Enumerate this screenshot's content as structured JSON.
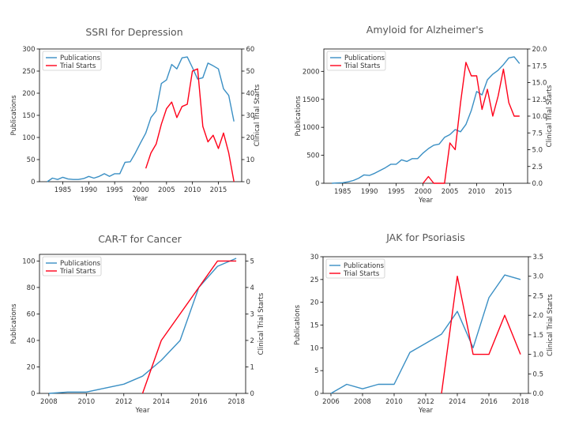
{
  "chart_data": [
    {
      "type": "line",
      "title": "SSRI for Depression",
      "xlabel": "Year",
      "ylabel": "Publications",
      "ylabel_right": "Clinical Trial Starts",
      "xlim": [
        1980.5,
        2019.5
      ],
      "xticks": [
        1985,
        1990,
        1995,
        2000,
        2005,
        2010,
        2015
      ],
      "ylim": [
        0,
        300
      ],
      "yticks": [
        0,
        50,
        100,
        150,
        200,
        250,
        300
      ],
      "ylim_right": [
        0,
        60
      ],
      "yticks_right": [
        0,
        10,
        20,
        30,
        40,
        50,
        60
      ],
      "legend": "top-left",
      "colors": {
        "publications": "#3a8fc4",
        "trials": "#ff0019"
      },
      "series": [
        {
          "name": "Publications",
          "axis": "left",
          "x": [
            1982,
            1983,
            1984,
            1985,
            1986,
            1987,
            1988,
            1989,
            1990,
            1991,
            1992,
            1993,
            1994,
            1995,
            1996,
            1997,
            1998,
            1999,
            2000,
            2001,
            2002,
            2003,
            2004,
            2005,
            2006,
            2007,
            2008,
            2009,
            2010,
            2011,
            2012,
            2013,
            2014,
            2015,
            2016,
            2017,
            2018
          ],
          "y": [
            0,
            8,
            5,
            10,
            6,
            5,
            5,
            7,
            12,
            8,
            12,
            18,
            12,
            18,
            18,
            44,
            45,
            65,
            88,
            110,
            145,
            160,
            222,
            230,
            265,
            255,
            280,
            282,
            258,
            232,
            235,
            268,
            262,
            255,
            210,
            195,
            136
          ]
        },
        {
          "name": "Trial Starts",
          "axis": "right",
          "x": [
            2001,
            2002,
            2003,
            2004,
            2005,
            2006,
            2007,
            2008,
            2009,
            2010,
            2011,
            2012,
            2013,
            2014,
            2015,
            2016,
            2017,
            2018
          ],
          "y": [
            6,
            13,
            17,
            26,
            33,
            36,
            29,
            34,
            35,
            50,
            51,
            25,
            18,
            21,
            15,
            22,
            13,
            0
          ]
        }
      ]
    },
    {
      "type": "line",
      "title": "Amyloid for Alzheimer's",
      "xlabel": "Year",
      "ylabel": "Publications",
      "ylabel_right": "Clinical Trial Starts",
      "xlim": [
        1981.5,
        2019.5
      ],
      "xticks": [
        1985,
        1990,
        1995,
        2000,
        2005,
        2010,
        2015
      ],
      "ylim": [
        0,
        2400
      ],
      "yticks": [
        0,
        500,
        1000,
        1500,
        2000
      ],
      "ylim_right": [
        0,
        20
      ],
      "yticks_right": [
        0.0,
        2.5,
        5.0,
        7.5,
        10.0,
        12.5,
        15.0,
        17.5,
        20.0
      ],
      "legend": "top-left",
      "colors": {
        "publications": "#3a8fc4",
        "trials": "#ff0019"
      },
      "series": [
        {
          "name": "Publications",
          "axis": "left",
          "x": [
            1983,
            1984,
            1985,
            1986,
            1987,
            1988,
            1989,
            1990,
            1991,
            1992,
            1993,
            1994,
            1995,
            1996,
            1997,
            1998,
            1999,
            2000,
            2001,
            2002,
            2003,
            2004,
            2005,
            2006,
            2007,
            2008,
            2009,
            2010,
            2011,
            2012,
            2013,
            2014,
            2015,
            2016,
            2017,
            2018
          ],
          "y": [
            0,
            5,
            10,
            25,
            50,
            90,
            150,
            140,
            180,
            230,
            280,
            340,
            340,
            420,
            390,
            440,
            440,
            540,
            620,
            680,
            700,
            820,
            870,
            960,
            920,
            1050,
            1300,
            1640,
            1580,
            1850,
            1950,
            2020,
            2120,
            2240,
            2260,
            2140
          ]
        },
        {
          "name": "Trial Starts",
          "axis": "right",
          "x": [
            2000,
            2001,
            2002,
            2003,
            2004,
            2005,
            2006,
            2007,
            2008,
            2009,
            2010,
            2011,
            2012,
            2013,
            2014,
            2015,
            2016,
            2017,
            2018
          ],
          "y": [
            0,
            1,
            0,
            0,
            0,
            6,
            5,
            12,
            18,
            16,
            16,
            11,
            14,
            10,
            13,
            17,
            12,
            10,
            10
          ]
        }
      ]
    },
    {
      "type": "line",
      "title": "CAR-T for Cancer",
      "xlabel": "Year",
      "ylabel": "Publications",
      "ylabel_right": "Clinical Trial Starts",
      "xlim": [
        2007.5,
        2018.5
      ],
      "xticks": [
        2008,
        2010,
        2012,
        2014,
        2016,
        2018
      ],
      "ylim": [
        0,
        105
      ],
      "yticks": [
        0,
        20,
        40,
        60,
        80,
        100
      ],
      "ylim_right": [
        0,
        5.25
      ],
      "yticks_right": [
        0,
        1,
        2,
        3,
        4,
        5
      ],
      "legend": "top-left",
      "colors": {
        "publications": "#3a8fc4",
        "trials": "#ff0019"
      },
      "series": [
        {
          "name": "Publications",
          "axis": "left",
          "x": [
            2008,
            2009,
            2010,
            2011,
            2012,
            2013,
            2014,
            2015,
            2016,
            2017,
            2018
          ],
          "y": [
            0,
            1,
            1,
            4,
            7,
            13,
            25,
            40,
            80,
            96,
            102
          ]
        },
        {
          "name": "Trial Starts",
          "axis": "right",
          "x": [
            2013,
            2014,
            2015,
            2016,
            2017,
            2018
          ],
          "y": [
            0,
            2,
            3,
            4,
            5,
            5
          ]
        }
      ]
    },
    {
      "type": "line",
      "title": "JAK for Psoriasis",
      "xlabel": "Year",
      "ylabel": "Publications",
      "ylabel_right": "Clinical Trial Starts",
      "xlim": [
        2005.5,
        2018.5
      ],
      "xticks": [
        2006,
        2008,
        2010,
        2012,
        2014,
        2016,
        2018
      ],
      "ylim": [
        0,
        30
      ],
      "yticks": [
        0,
        5,
        10,
        15,
        20,
        25,
        30
      ],
      "ylim_right": [
        0,
        3.5
      ],
      "yticks_right": [
        0.0,
        0.5,
        1.0,
        1.5,
        2.0,
        2.5,
        3.0,
        3.5
      ],
      "legend": "top-left",
      "colors": {
        "publications": "#3a8fc4",
        "trials": "#ff0019"
      },
      "series": [
        {
          "name": "Publications",
          "axis": "left",
          "x": [
            2006,
            2007,
            2008,
            2009,
            2010,
            2011,
            2012,
            2013,
            2014,
            2015,
            2016,
            2017,
            2018
          ],
          "y": [
            0,
            2,
            1,
            2,
            2,
            9,
            11,
            13,
            18,
            10,
            21,
            26,
            25
          ]
        },
        {
          "name": "Trial Starts",
          "axis": "right",
          "x": [
            2013,
            2014,
            2015,
            2016,
            2017,
            2018
          ],
          "y": [
            0,
            3,
            1,
            1,
            2,
            1
          ]
        }
      ]
    }
  ]
}
